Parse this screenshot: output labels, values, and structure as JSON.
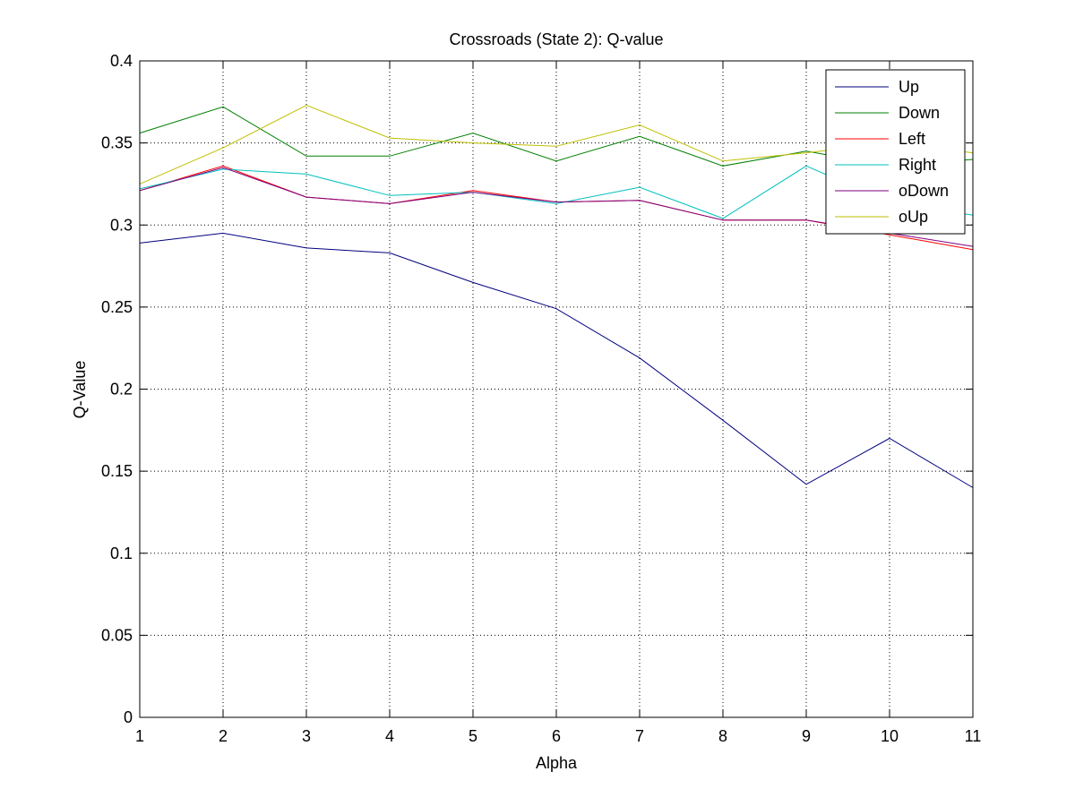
{
  "chart_data": {
    "type": "line",
    "title": "Crossroads (State 2): Q-value",
    "xlabel": "Alpha",
    "ylabel": "Q-Value",
    "xlim": [
      1,
      11
    ],
    "ylim": [
      0,
      0.4
    ],
    "x": [
      1,
      2,
      3,
      4,
      5,
      6,
      7,
      8,
      9,
      10,
      11
    ],
    "xticks": [
      "1",
      "2",
      "3",
      "4",
      "5",
      "6",
      "7",
      "8",
      "9",
      "10",
      "11"
    ],
    "yticks": [
      "0",
      "0.05",
      "0.1",
      "0.15",
      "0.2",
      "0.25",
      "0.3",
      "0.35",
      "0.4"
    ],
    "ytick_values": [
      0,
      0.05,
      0.1,
      0.15,
      0.2,
      0.25,
      0.3,
      0.35,
      0.4
    ],
    "grid": true,
    "legend_position": "top-right",
    "series": [
      {
        "name": "Up",
        "color": "#00007f",
        "values": [
          0.289,
          0.295,
          0.286,
          0.283,
          0.265,
          0.249,
          0.219,
          0.181,
          0.142,
          0.17,
          0.14
        ]
      },
      {
        "name": "Down",
        "color": "#007f00",
        "values": [
          0.356,
          0.372,
          0.342,
          0.342,
          0.356,
          0.339,
          0.354,
          0.336,
          0.345,
          0.336,
          0.34
        ]
      },
      {
        "name": "Left",
        "color": "#ff0000",
        "values": [
          0.321,
          0.336,
          0.317,
          0.313,
          0.321,
          0.314,
          0.315,
          0.303,
          0.303,
          0.294,
          0.285
        ]
      },
      {
        "name": "Right",
        "color": "#00bfbf",
        "values": [
          0.322,
          0.334,
          0.331,
          0.318,
          0.32,
          0.313,
          0.323,
          0.304,
          0.336,
          0.314,
          0.306
        ]
      },
      {
        "name": "oDown",
        "color": "#7f007f",
        "values": [
          0.321,
          0.335,
          0.317,
          0.313,
          0.32,
          0.314,
          0.315,
          0.303,
          0.303,
          0.295,
          0.287
        ]
      },
      {
        "name": "oUp",
        "color": "#bfbf00",
        "values": [
          0.325,
          0.347,
          0.373,
          0.353,
          0.35,
          0.348,
          0.361,
          0.339,
          0.344,
          0.35,
          0.344
        ]
      }
    ]
  }
}
